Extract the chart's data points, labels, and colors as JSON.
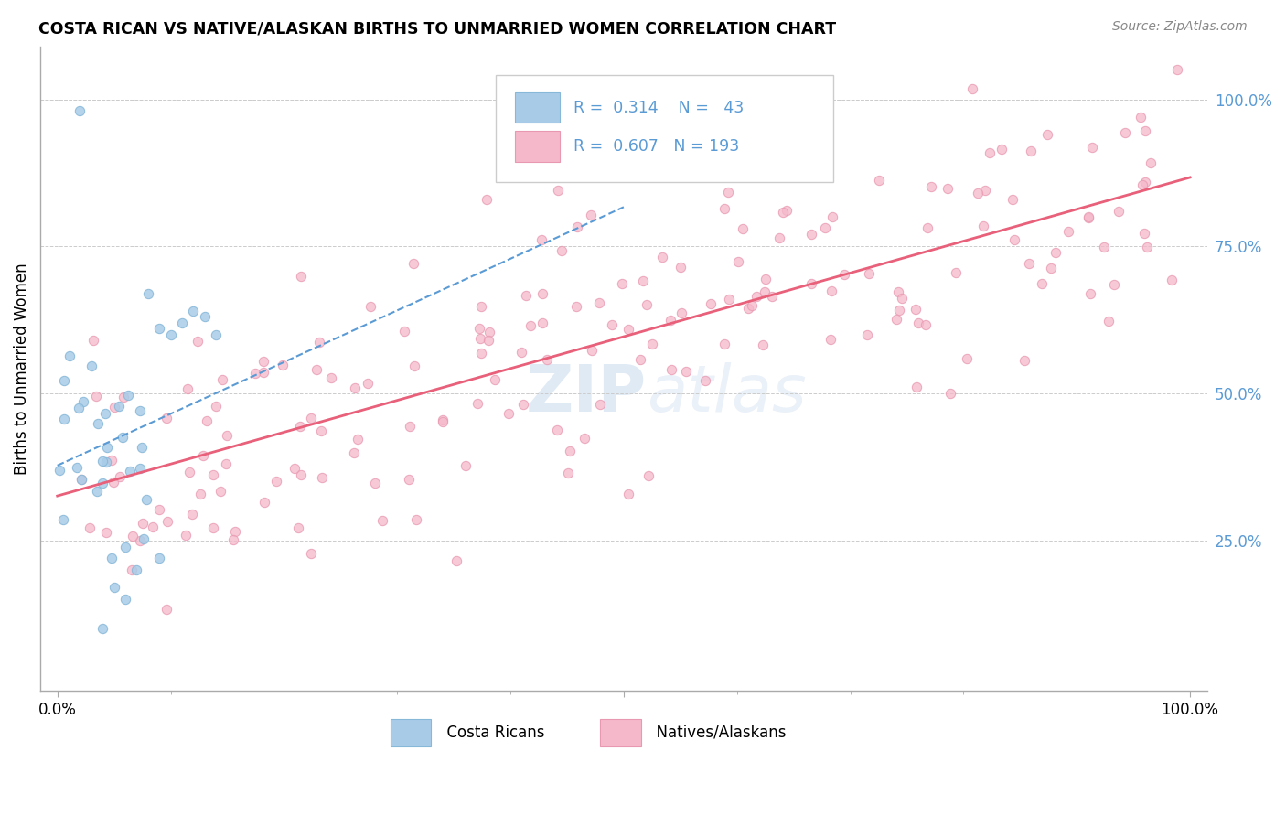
{
  "title": "COSTA RICAN VS NATIVE/ALASKAN BIRTHS TO UNMARRIED WOMEN CORRELATION CHART",
  "source_text": "Source: ZipAtlas.com",
  "ylabel": "Births to Unmarried Women",
  "blue_color": "#a8cce8",
  "pink_color": "#f5b8ca",
  "blue_line_color": "#5b9bd5",
  "pink_line_color": "#e8607a",
  "ytick_color": "#5b9bd5",
  "R_blue": 0.314,
  "N_blue": 43,
  "R_pink": 0.607,
  "N_pink": 193,
  "watermark_color": "#ccdcee",
  "grid_color": "#cccccc"
}
